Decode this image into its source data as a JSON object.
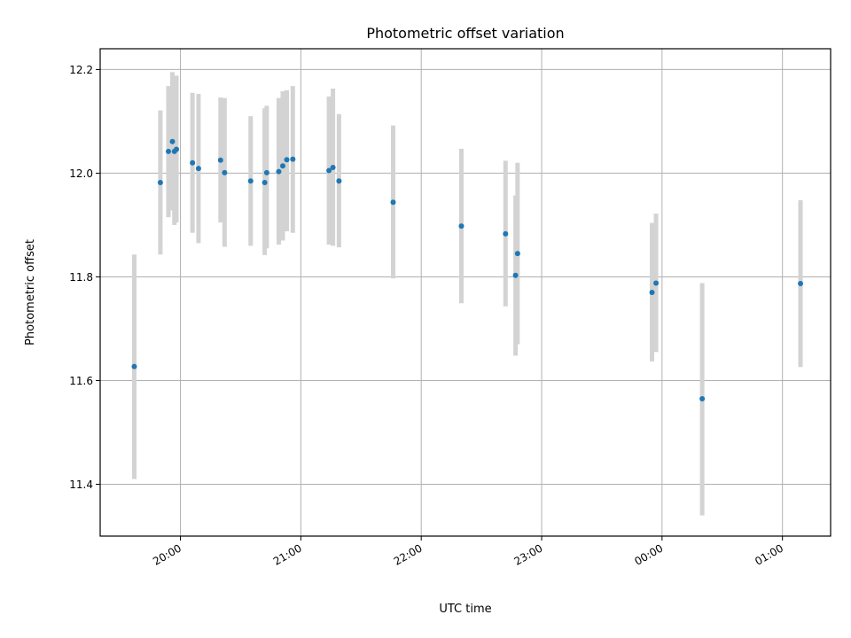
{
  "chart_data": {
    "type": "scatter",
    "title": "Photometric offset variation",
    "xlabel": "UTC time",
    "ylabel": "Photometric offset",
    "x_axis_type": "time",
    "x_origin": "19:00",
    "xlim": [
      "19:20",
      "25:24"
    ],
    "ylim": [
      11.3,
      12.24
    ],
    "grid": true,
    "x_ticks": [
      {
        "value": "20:00",
        "label": "20:00"
      },
      {
        "value": "21:00",
        "label": "21:00"
      },
      {
        "value": "22:00",
        "label": "22:00"
      },
      {
        "value": "23:00",
        "label": "23:00"
      },
      {
        "value": "24:00",
        "label": "00:00"
      },
      {
        "value": "25:00",
        "label": "01:00"
      }
    ],
    "y_ticks": [
      {
        "value": 11.4,
        "label": "11.4"
      },
      {
        "value": 11.6,
        "label": "11.6"
      },
      {
        "value": 11.8,
        "label": "11.8"
      },
      {
        "value": 12.0,
        "label": "12.0"
      },
      {
        "value": 12.2,
        "label": "12.2"
      }
    ],
    "colors": {
      "point": "#1f77b4",
      "errorbar": "#d3d3d3",
      "grid": "#b0b0b0"
    },
    "points": [
      {
        "x": "19:37",
        "y": 11.627,
        "yerr_low": 11.41,
        "yerr_high": 11.843
      },
      {
        "x": "19:50",
        "y": 11.982,
        "yerr_low": 11.843,
        "yerr_high": 12.121
      },
      {
        "x": "19:54",
        "y": 12.042,
        "yerr_low": 11.915,
        "yerr_high": 12.168
      },
      {
        "x": "19:56",
        "y": 12.061,
        "yerr_low": 11.928,
        "yerr_high": 12.195
      },
      {
        "x": "19:57",
        "y": 12.042,
        "yerr_low": 11.9,
        "yerr_high": 12.185
      },
      {
        "x": "19:58",
        "y": 12.046,
        "yerr_low": 11.905,
        "yerr_high": 12.188
      },
      {
        "x": "20:06",
        "y": 12.02,
        "yerr_low": 11.885,
        "yerr_high": 12.155
      },
      {
        "x": "20:09",
        "y": 12.009,
        "yerr_low": 11.865,
        "yerr_high": 12.153
      },
      {
        "x": "20:20",
        "y": 12.025,
        "yerr_low": 11.905,
        "yerr_high": 12.146
      },
      {
        "x": "20:22",
        "y": 12.001,
        "yerr_low": 11.858,
        "yerr_high": 12.145
      },
      {
        "x": "20:35",
        "y": 11.985,
        "yerr_low": 11.86,
        "yerr_high": 12.11
      },
      {
        "x": "20:42",
        "y": 11.982,
        "yerr_low": 11.842,
        "yerr_high": 12.125
      },
      {
        "x": "20:43",
        "y": 12.001,
        "yerr_low": 11.855,
        "yerr_high": 12.13
      },
      {
        "x": "20:49",
        "y": 12.003,
        "yerr_low": 11.862,
        "yerr_high": 12.145
      },
      {
        "x": "20:51",
        "y": 12.014,
        "yerr_low": 11.87,
        "yerr_high": 12.158
      },
      {
        "x": "20:53",
        "y": 12.026,
        "yerr_low": 11.888,
        "yerr_high": 12.16
      },
      {
        "x": "20:56",
        "y": 12.027,
        "yerr_low": 11.885,
        "yerr_high": 12.168
      },
      {
        "x": "21:14",
        "y": 12.005,
        "yerr_low": 11.862,
        "yerr_high": 12.148
      },
      {
        "x": "21:16",
        "y": 12.011,
        "yerr_low": 11.86,
        "yerr_high": 12.163
      },
      {
        "x": "21:19",
        "y": 11.985,
        "yerr_low": 11.857,
        "yerr_high": 12.114
      },
      {
        "x": "21:46",
        "y": 11.944,
        "yerr_low": 11.797,
        "yerr_high": 12.092
      },
      {
        "x": "22:20",
        "y": 11.898,
        "yerr_low": 11.749,
        "yerr_high": 12.047
      },
      {
        "x": "22:42",
        "y": 11.883,
        "yerr_low": 11.743,
        "yerr_high": 12.024
      },
      {
        "x": "22:47",
        "y": 11.803,
        "yerr_low": 11.648,
        "yerr_high": 11.957
      },
      {
        "x": "22:48",
        "y": 11.845,
        "yerr_low": 11.67,
        "yerr_high": 12.02
      },
      {
        "x": "23:55",
        "y": 11.77,
        "yerr_low": 11.637,
        "yerr_high": 11.904
      },
      {
        "x": "23:57",
        "y": 11.788,
        "yerr_low": 11.655,
        "yerr_high": 11.922
      },
      {
        "x": "24:20",
        "y": 11.565,
        "yerr_low": 11.34,
        "yerr_high": 11.788
      },
      {
        "x": "25:09",
        "y": 11.787,
        "yerr_low": 11.626,
        "yerr_high": 11.948
      }
    ]
  }
}
